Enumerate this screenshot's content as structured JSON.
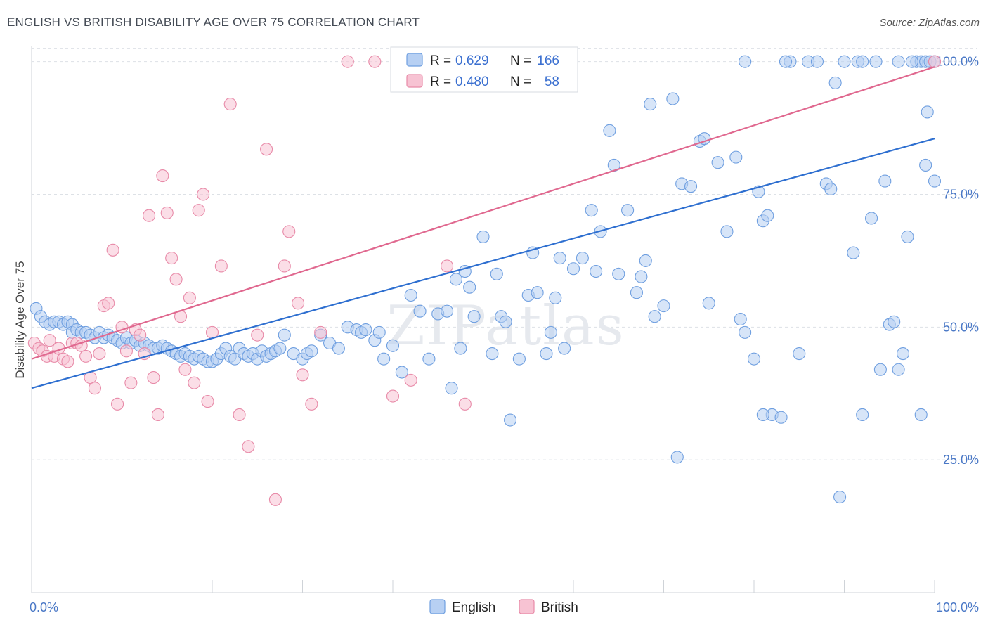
{
  "title": "ENGLISH VS BRITISH DISABILITY AGE OVER 75 CORRELATION CHART",
  "source": "Source: ZipAtlas.com",
  "watermark": "ZIPatlas",
  "chart_data": {
    "type": "scatter",
    "xlabel": "",
    "ylabel": "Disability Age Over 75",
    "xlim": [
      0,
      100
    ],
    "ylim": [
      0,
      103
    ],
    "x_tick_labels": [
      "0.0%",
      "100.0%"
    ],
    "y_ticks": [
      25,
      50,
      75,
      100
    ],
    "y_tick_labels": [
      "25.0%",
      "50.0%",
      "75.0%",
      "100.0%"
    ],
    "grid": true,
    "legend_position": "bottom-center",
    "stats_box_position": "top-center",
    "series": [
      {
        "name": "English",
        "color": "#6f9fe0",
        "fill": "#b7d0f3",
        "line_color": "#2e6fd0",
        "R": "0.629",
        "N": "166",
        "trend": {
          "x": [
            0,
            100
          ],
          "y": [
            38.5,
            85.5
          ]
        },
        "points": [
          [
            0.5,
            53.5
          ],
          [
            1,
            52
          ],
          [
            1.5,
            51
          ],
          [
            2,
            50.5
          ],
          [
            2.5,
            51
          ],
          [
            3,
            51
          ],
          [
            3.5,
            50.5
          ],
          [
            4,
            51
          ],
          [
            4.5,
            50.5
          ],
          [
            4.5,
            49
          ],
          [
            5,
            49.5
          ],
          [
            5.5,
            49
          ],
          [
            6,
            49
          ],
          [
            6.5,
            48.5
          ],
          [
            7,
            48
          ],
          [
            7.5,
            49
          ],
          [
            8,
            48
          ],
          [
            8.5,
            48.5
          ],
          [
            9,
            48
          ],
          [
            9.5,
            47.5
          ],
          [
            10,
            47
          ],
          [
            10.5,
            48
          ],
          [
            11,
            47
          ],
          [
            11.5,
            47.5
          ],
          [
            12,
            46.5
          ],
          [
            12.5,
            47
          ],
          [
            13,
            46.5
          ],
          [
            13.5,
            46
          ],
          [
            14,
            46
          ],
          [
            14.5,
            46.5
          ],
          [
            15,
            46
          ],
          [
            15.5,
            45.5
          ],
          [
            16,
            45
          ],
          [
            16.5,
            44.5
          ],
          [
            17,
            45
          ],
          [
            17.5,
            44.5
          ],
          [
            18,
            44
          ],
          [
            18.5,
            44.5
          ],
          [
            19,
            44
          ],
          [
            19.5,
            43.5
          ],
          [
            20,
            43.5
          ],
          [
            20.5,
            44
          ],
          [
            21,
            45
          ],
          [
            21.5,
            46
          ],
          [
            22,
            44.5
          ],
          [
            22.5,
            44
          ],
          [
            23,
            46
          ],
          [
            23.5,
            45
          ],
          [
            24,
            44.5
          ],
          [
            24.5,
            45
          ],
          [
            25,
            44
          ],
          [
            25.5,
            45.5
          ],
          [
            26,
            44.5
          ],
          [
            26.5,
            45
          ],
          [
            27,
            45.5
          ],
          [
            27.5,
            46
          ],
          [
            28,
            48.5
          ],
          [
            29,
            45
          ],
          [
            30,
            44
          ],
          [
            30.5,
            45
          ],
          [
            31,
            45.5
          ],
          [
            32,
            48.5
          ],
          [
            33,
            47
          ],
          [
            34,
            46
          ],
          [
            35,
            50
          ],
          [
            36,
            49.5
          ],
          [
            36.5,
            49
          ],
          [
            37,
            49.5
          ],
          [
            38,
            47.5
          ],
          [
            38.5,
            49
          ],
          [
            39,
            44
          ],
          [
            40,
            46.5
          ],
          [
            41,
            41.5
          ],
          [
            42,
            56
          ],
          [
            43,
            53
          ],
          [
            44,
            44
          ],
          [
            45,
            52.5
          ],
          [
            46,
            53
          ],
          [
            46.5,
            38.5
          ],
          [
            47,
            59
          ],
          [
            47.5,
            46
          ],
          [
            48,
            60.5
          ],
          [
            48.5,
            57.5
          ],
          [
            49,
            52
          ],
          [
            50,
            67
          ],
          [
            51,
            45
          ],
          [
            51.5,
            60
          ],
          [
            52,
            52
          ],
          [
            52.5,
            51
          ],
          [
            53,
            32.5
          ],
          [
            54,
            44
          ],
          [
            55,
            56
          ],
          [
            55.5,
            64
          ],
          [
            56,
            56.5
          ],
          [
            57,
            45
          ],
          [
            57.5,
            49
          ],
          [
            58,
            55.5
          ],
          [
            58.5,
            63
          ],
          [
            59,
            46
          ],
          [
            60,
            61
          ],
          [
            61,
            63
          ],
          [
            62,
            72
          ],
          [
            62.5,
            60.5
          ],
          [
            63,
            68
          ],
          [
            64,
            87
          ],
          [
            64.5,
            80.5
          ],
          [
            65,
            60
          ],
          [
            66,
            72
          ],
          [
            67,
            56.5
          ],
          [
            67.5,
            59.5
          ],
          [
            68,
            62.5
          ],
          [
            68.5,
            92
          ],
          [
            69,
            52
          ],
          [
            70,
            54
          ],
          [
            71,
            93
          ],
          [
            71.5,
            25.5
          ],
          [
            72,
            77
          ],
          [
            73,
            76.5
          ],
          [
            74,
            85
          ],
          [
            74.5,
            85.5
          ],
          [
            75,
            54.5
          ],
          [
            76,
            81
          ],
          [
            77,
            68
          ],
          [
            78,
            82
          ],
          [
            78.5,
            51.5
          ],
          [
            79,
            49
          ],
          [
            80,
            44
          ],
          [
            80.5,
            75.5
          ],
          [
            81,
            70
          ],
          [
            81.5,
            71
          ],
          [
            82,
            33.5
          ],
          [
            83,
            33
          ],
          [
            84,
            100
          ],
          [
            85,
            45
          ],
          [
            86,
            100
          ],
          [
            87,
            100
          ],
          [
            88,
            77
          ],
          [
            88.5,
            76
          ],
          [
            89,
            96
          ],
          [
            89.5,
            18
          ],
          [
            90,
            100
          ],
          [
            91,
            64
          ],
          [
            91.5,
            100
          ],
          [
            92,
            100
          ],
          [
            93,
            70.5
          ],
          [
            94,
            42
          ],
          [
            94.5,
            77.5
          ],
          [
            95,
            50.5
          ],
          [
            95.5,
            51
          ],
          [
            96,
            42
          ],
          [
            96.5,
            45
          ],
          [
            97,
            67
          ],
          [
            98,
            100
          ],
          [
            98.5,
            100
          ],
          [
            99,
            100
          ],
          [
            99.5,
            100
          ],
          [
            100,
            100
          ],
          [
            83.5,
            100
          ],
          [
            79,
            100
          ],
          [
            81,
            33.5
          ],
          [
            92,
            33.5
          ],
          [
            93.5,
            100
          ],
          [
            96,
            100
          ],
          [
            97.5,
            100
          ],
          [
            98.5,
            33.5
          ],
          [
            99,
            80.5
          ],
          [
            99.2,
            90.5
          ],
          [
            100,
            77.5
          ]
        ]
      },
      {
        "name": "British",
        "color": "#e88aa8",
        "fill": "#f7c3d3",
        "line_color": "#e0688f",
        "R": "0.480",
        "N": "58",
        "trend": {
          "x": [
            0,
            100
          ],
          "y": [
            44,
            99
          ]
        },
        "points": [
          [
            0.3,
            47
          ],
          [
            0.8,
            46
          ],
          [
            1.2,
            45.5
          ],
          [
            1.7,
            44.5
          ],
          [
            2,
            47.5
          ],
          [
            2.5,
            44.5
          ],
          [
            3,
            46
          ],
          [
            3.5,
            44
          ],
          [
            4,
            43.5
          ],
          [
            4.5,
            47
          ],
          [
            5,
            47
          ],
          [
            5.5,
            46.5
          ],
          [
            6,
            44.5
          ],
          [
            6.5,
            40.5
          ],
          [
            7,
            38.5
          ],
          [
            7.5,
            45
          ],
          [
            8,
            54
          ],
          [
            8.5,
            54.5
          ],
          [
            9,
            64.5
          ],
          [
            9.5,
            35.5
          ],
          [
            10,
            50
          ],
          [
            10.5,
            45.5
          ],
          [
            11,
            39.5
          ],
          [
            11.5,
            49.5
          ],
          [
            12,
            48.5
          ],
          [
            12.5,
            45
          ],
          [
            13,
            71
          ],
          [
            13.5,
            40.5
          ],
          [
            14,
            33.5
          ],
          [
            14.5,
            78.5
          ],
          [
            15,
            71.5
          ],
          [
            15.5,
            63
          ],
          [
            16,
            59
          ],
          [
            16.5,
            52
          ],
          [
            17,
            42
          ],
          [
            17.5,
            55.5
          ],
          [
            18,
            39.5
          ],
          [
            18.5,
            72
          ],
          [
            19,
            75
          ],
          [
            19.5,
            36
          ],
          [
            20,
            49
          ],
          [
            21,
            61.5
          ],
          [
            22,
            92
          ],
          [
            23,
            33.5
          ],
          [
            24,
            27.5
          ],
          [
            25,
            48.5
          ],
          [
            26,
            83.5
          ],
          [
            27,
            17.5
          ],
          [
            28,
            61.5
          ],
          [
            28.5,
            68
          ],
          [
            29.5,
            54.5
          ],
          [
            30,
            41
          ],
          [
            31,
            35.5
          ],
          [
            32,
            49
          ],
          [
            35,
            100
          ],
          [
            38,
            100
          ],
          [
            40,
            37
          ],
          [
            42,
            40
          ],
          [
            46,
            61.5
          ],
          [
            48,
            35.5
          ],
          [
            54,
            100
          ],
          [
            100,
            100
          ]
        ]
      }
    ]
  }
}
